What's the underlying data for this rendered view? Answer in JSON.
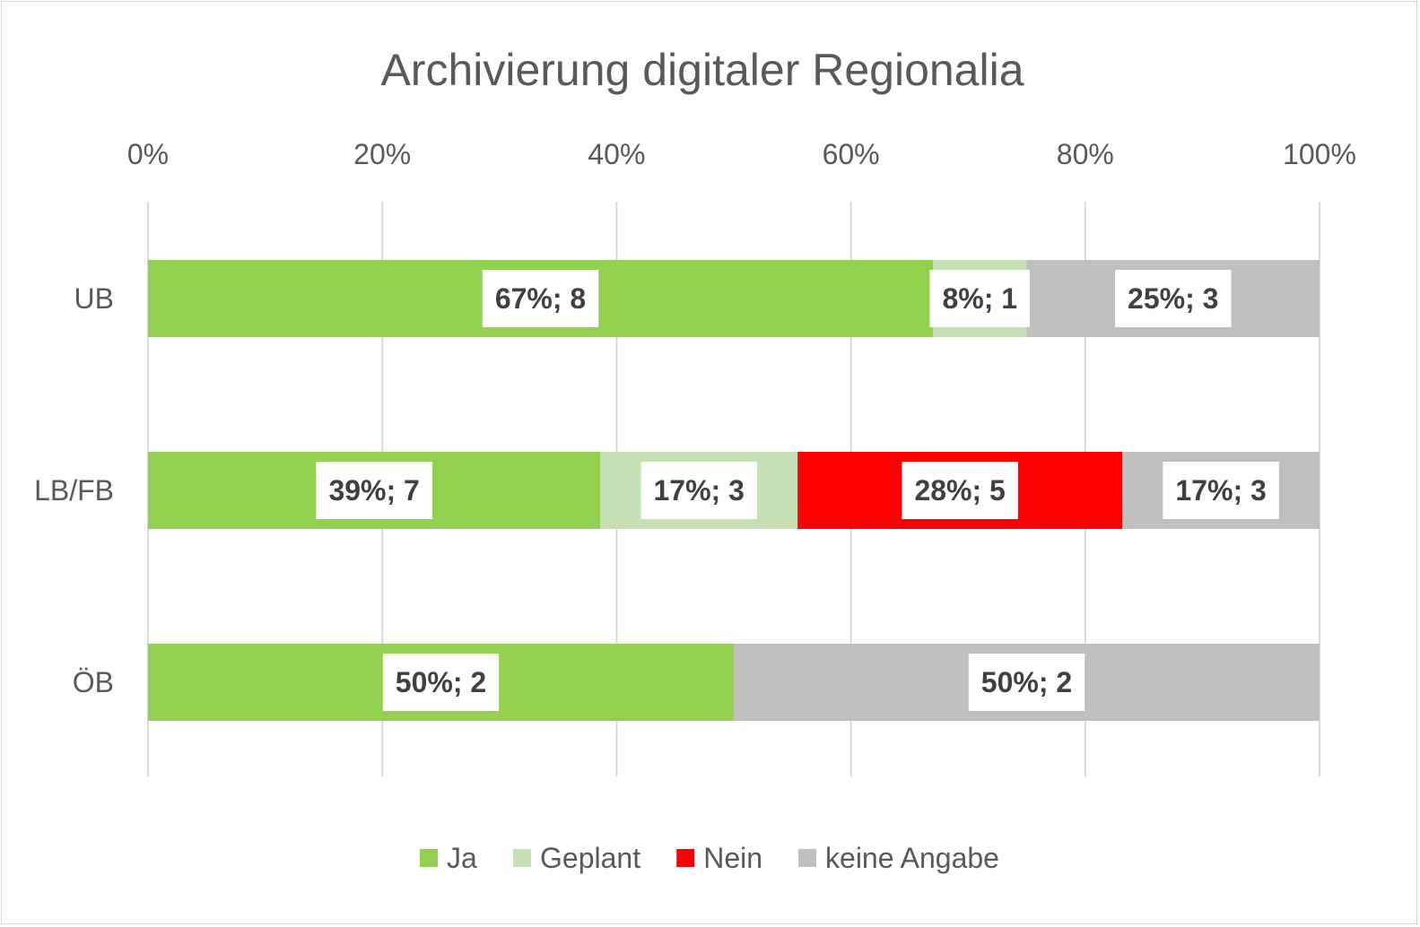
{
  "chart_data": {
    "type": "bar",
    "orientation": "horizontal",
    "stacked": "percent",
    "title": "Archivierung digitaler Regionalia",
    "xlabel": "",
    "ylabel": "",
    "xlim": [
      0,
      100
    ],
    "x_ticks": [
      "0%",
      "20%",
      "40%",
      "60%",
      "80%",
      "100%"
    ],
    "x_axis_position": "top",
    "grid": true,
    "legend_position": "bottom",
    "categories": [
      "UB",
      "LB/FB",
      "ÖB"
    ],
    "series": [
      {
        "name": "Ja",
        "color": "#92d050",
        "percent": [
          67,
          39,
          50
        ],
        "counts": [
          8,
          7,
          2
        ],
        "labels": [
          "67%; 8",
          "39%; 7",
          "50%; 2"
        ]
      },
      {
        "name": "Geplant",
        "color": "#c5e0b4",
        "percent": [
          8,
          17,
          0
        ],
        "counts": [
          1,
          3,
          0
        ],
        "labels": [
          "8%; 1",
          "17%; 3",
          ""
        ]
      },
      {
        "name": "Nein",
        "color": "#ff0000",
        "percent": [
          0,
          28,
          0
        ],
        "counts": [
          0,
          5,
          0
        ],
        "labels": [
          "",
          "28%; 5",
          ""
        ]
      },
      {
        "name": "keine Angabe",
        "color": "#bfbfbf",
        "percent": [
          25,
          17,
          50
        ],
        "counts": [
          3,
          3,
          2
        ],
        "labels": [
          "25%; 3",
          "17%; 3",
          "50%; 2"
        ]
      }
    ]
  },
  "colors": {
    "gridline": "#d9d9d9",
    "text": "#595959",
    "label_text": "#404040",
    "label_box": "#ffffff"
  }
}
